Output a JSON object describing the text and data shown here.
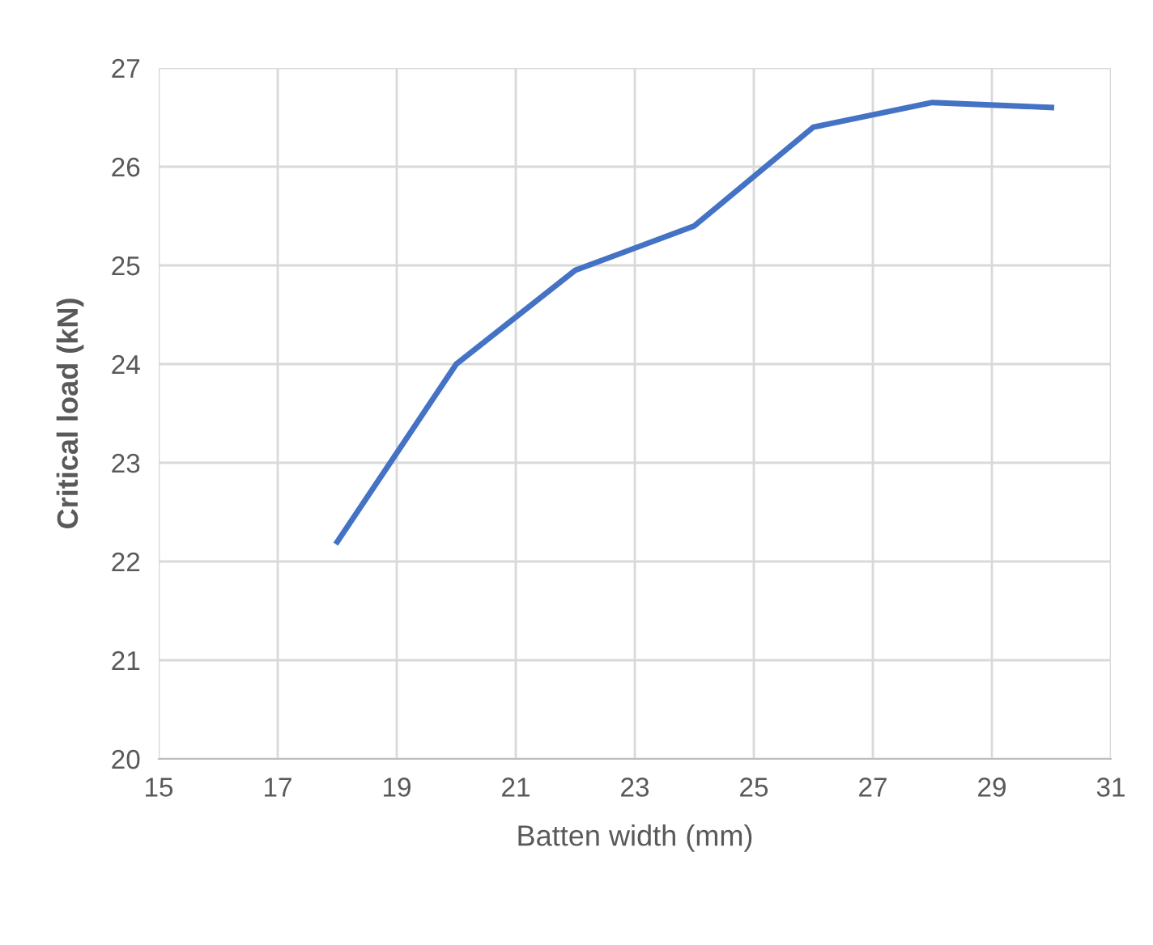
{
  "chart_data": {
    "type": "line",
    "xlabel": "Batten width (mm)",
    "ylabel": "Critical load (kN)",
    "x": [
      18,
      20,
      22,
      24,
      26,
      28,
      30
    ],
    "series": [
      {
        "color": "#4472c4",
        "values": [
          22.2,
          24.0,
          24.95,
          25.4,
          26.4,
          26.65,
          26.6
        ]
      }
    ],
    "xlim": [
      15,
      31
    ],
    "xticks": [
      15,
      17,
      19,
      21,
      23,
      25,
      27,
      29,
      31
    ],
    "ylim": [
      20,
      27
    ],
    "yticks": [
      20,
      21,
      22,
      23,
      24,
      25,
      26,
      27
    ],
    "grid": true,
    "marker": "none",
    "line_style": "solid"
  }
}
